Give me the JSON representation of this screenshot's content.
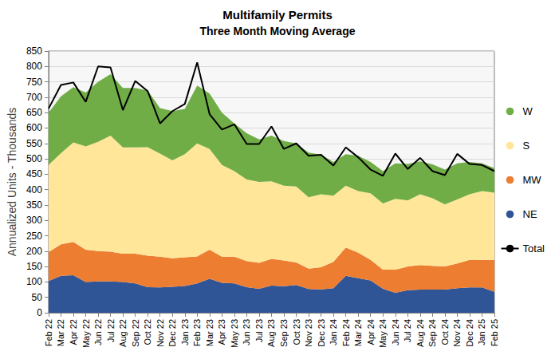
{
  "chart_data": {
    "type": "area",
    "title": "Multifamily Permits",
    "subtitle": "Three Month Moving Average",
    "y_label": "Annualized Units - Thousands",
    "stacked": true,
    "grid": true,
    "legend": "right",
    "categories": [
      "Feb 22",
      "Mar 22",
      "Apr 22",
      "May 22",
      "Jun 22",
      "Jul 22",
      "Aug 22",
      "Sep 22",
      "Oct 22",
      "Nov 22",
      "Dec 22",
      "Jan 23",
      "Feb 23",
      "Mar 23",
      "Apr 23",
      "May 23",
      "Jun 23",
      "Jul 23",
      "Aug 23",
      "Sep 23",
      "Oct 23",
      "Nov 23",
      "Dec 23",
      "Jan 24",
      "Feb 24",
      "Mar 24",
      "Apr 24",
      "May 24",
      "Jun 24",
      "Jul 24",
      "Aug 24",
      "Sep 24",
      "Oct 24",
      "Nov 24",
      "Dec 24",
      "Jan 25",
      "Feb 25"
    ],
    "ylim": [
      0,
      850
    ],
    "yticks": [
      0,
      50,
      100,
      150,
      200,
      250,
      300,
      350,
      400,
      450,
      500,
      550,
      600,
      650,
      700,
      750,
      800,
      850
    ],
    "series": [
      {
        "name": "NE",
        "type": "area",
        "color": "#2f5597",
        "values": [
          103,
          120,
          122,
          100,
          102,
          102,
          100,
          95,
          83,
          82,
          84,
          87,
          95,
          110,
          97,
          95,
          83,
          78,
          88,
          86,
          90,
          77,
          76,
          80,
          120,
          112,
          105,
          78,
          65,
          73,
          75,
          75,
          75,
          80,
          82,
          82,
          68
        ]
      },
      {
        "name": "MW",
        "type": "area",
        "color": "#ed7d31",
        "values": [
          94,
          102,
          108,
          105,
          98,
          96,
          92,
          97,
          102,
          100,
          93,
          93,
          88,
          95,
          85,
          87,
          85,
          84,
          87,
          84,
          73,
          66,
          72,
          85,
          92,
          83,
          67,
          62,
          75,
          77,
          80,
          77,
          75,
          80,
          90,
          90,
          104
        ]
      },
      {
        "name": "S",
        "type": "area",
        "color": "#ffe699",
        "values": [
          283,
          296,
          323,
          335,
          355,
          377,
          345,
          345,
          353,
          335,
          318,
          335,
          367,
          327,
          298,
          278,
          265,
          263,
          252,
          243,
          247,
          232,
          237,
          215,
          201,
          200,
          216,
          215,
          230,
          215,
          230,
          220,
          202,
          208,
          213,
          223,
          218
        ]
      },
      {
        "name": "W",
        "type": "area",
        "color": "#70ad47",
        "values": [
          170,
          185,
          180,
          175,
          195,
          200,
          193,
          193,
          184,
          148,
          160,
          147,
          188,
          180,
          170,
          155,
          150,
          138,
          148,
          145,
          140,
          145,
          128,
          110,
          102,
          115,
          102,
          105,
          115,
          118,
          107,
          110,
          113,
          117,
          105,
          90,
          80
        ]
      },
      {
        "name": "Total",
        "type": "line",
        "color": "#000000",
        "values": [
          663,
          740,
          748,
          685,
          800,
          797,
          658,
          753,
          720,
          615,
          655,
          678,
          813,
          645,
          595,
          612,
          548,
          548,
          605,
          532,
          550,
          510,
          513,
          478,
          537,
          505,
          465,
          445,
          517,
          467,
          503,
          460,
          447,
          516,
          483,
          480,
          460
        ]
      }
    ]
  }
}
